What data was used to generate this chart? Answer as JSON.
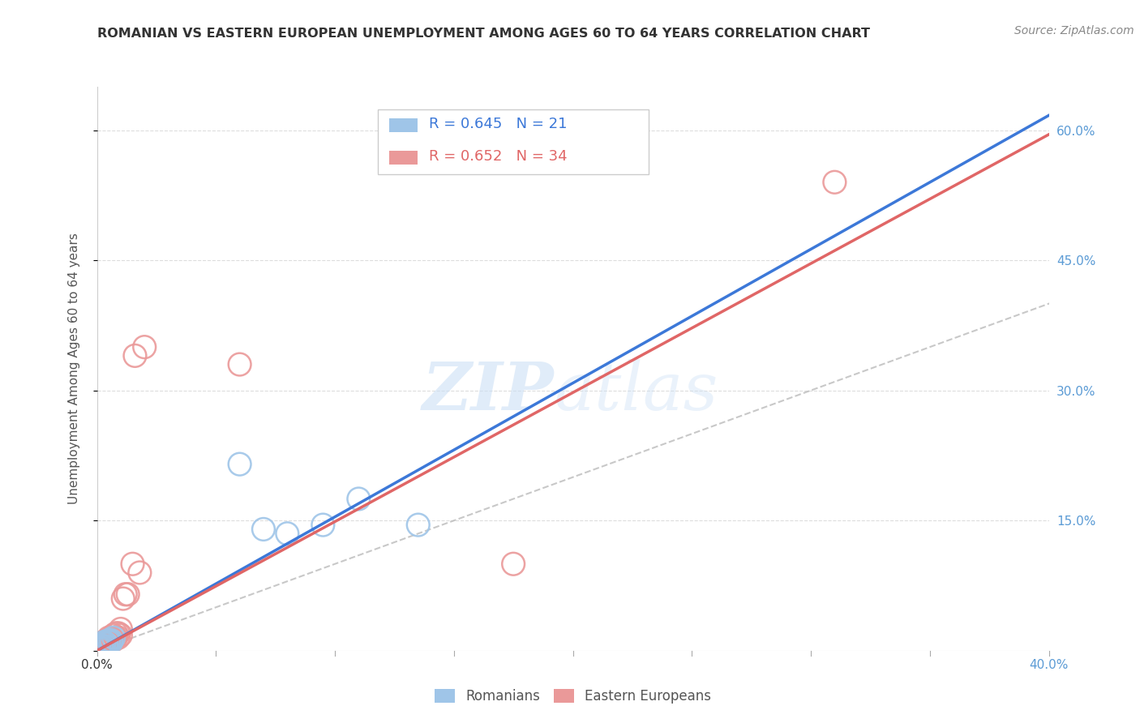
{
  "title": "ROMANIAN VS EASTERN EUROPEAN UNEMPLOYMENT AMONG AGES 60 TO 64 YEARS CORRELATION CHART",
  "source": "Source: ZipAtlas.com",
  "ylabel": "Unemployment Among Ages 60 to 64 years",
  "xlim": [
    0.0,
    0.4
  ],
  "ylim": [
    0.0,
    0.65
  ],
  "xticks": [
    0.0,
    0.05,
    0.1,
    0.15,
    0.2,
    0.25,
    0.3,
    0.35,
    0.4
  ],
  "ytick_positions": [
    0.0,
    0.15,
    0.3,
    0.45,
    0.6
  ],
  "ytick_labels_right": [
    "",
    "15.0%",
    "30.0%",
    "45.0%",
    "60.0%"
  ],
  "blue_color": "#9fc5e8",
  "pink_color": "#ea9999",
  "blue_line_color": "#3c78d8",
  "pink_line_color": "#e06666",
  "watermark_zip": "ZIP",
  "watermark_atlas": "atlas",
  "romanians_x": [
    0.001,
    0.001,
    0.002,
    0.002,
    0.002,
    0.003,
    0.003,
    0.003,
    0.004,
    0.004,
    0.005,
    0.005,
    0.006,
    0.006,
    0.007,
    0.06,
    0.07,
    0.08,
    0.095,
    0.11,
    0.135
  ],
  "romanians_y": [
    0.002,
    0.004,
    0.003,
    0.005,
    0.006,
    0.005,
    0.008,
    0.01,
    0.005,
    0.008,
    0.01,
    0.012,
    0.01,
    0.012,
    0.015,
    0.215,
    0.14,
    0.135,
    0.145,
    0.175,
    0.145
  ],
  "eastern_x": [
    0.001,
    0.001,
    0.001,
    0.002,
    0.002,
    0.002,
    0.003,
    0.003,
    0.003,
    0.004,
    0.004,
    0.005,
    0.005,
    0.005,
    0.006,
    0.006,
    0.007,
    0.007,
    0.008,
    0.008,
    0.009,
    0.009,
    0.01,
    0.01,
    0.011,
    0.012,
    0.013,
    0.015,
    0.016,
    0.018,
    0.02,
    0.06,
    0.175,
    0.31
  ],
  "eastern_y": [
    0.002,
    0.004,
    0.006,
    0.003,
    0.005,
    0.008,
    0.005,
    0.007,
    0.01,
    0.007,
    0.012,
    0.008,
    0.01,
    0.015,
    0.01,
    0.015,
    0.012,
    0.018,
    0.015,
    0.02,
    0.015,
    0.02,
    0.018,
    0.025,
    0.06,
    0.065,
    0.065,
    0.1,
    0.34,
    0.09,
    0.35,
    0.33,
    0.1,
    0.54
  ],
  "blue_regression": [
    0.0,
    0.0,
    0.4,
    0.617
  ],
  "pink_regression": [
    0.0,
    0.0,
    0.4,
    0.595
  ],
  "diag_line": [
    0.0,
    0.0,
    0.65,
    0.65
  ],
  "background_color": "#ffffff",
  "grid_color": "#dddddd"
}
